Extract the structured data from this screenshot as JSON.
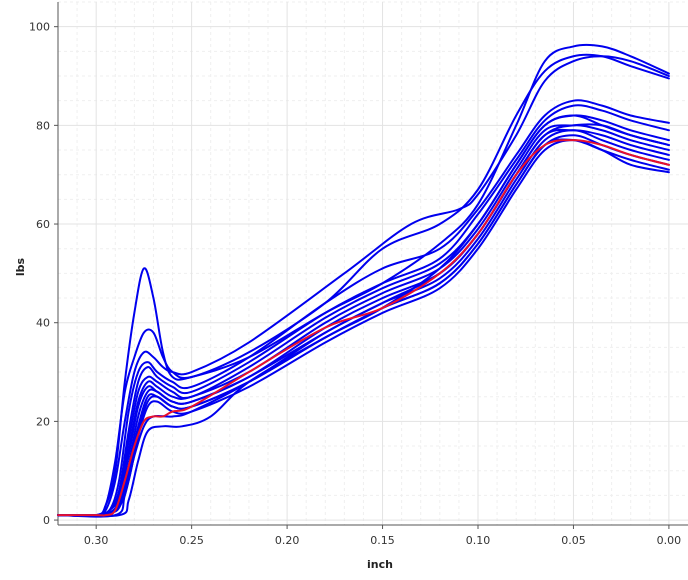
{
  "colors": {
    "series_blue": "#0000ee",
    "series_red": "#e8102c",
    "grid_major": "#e3e3e3",
    "grid_minor": "#efefef",
    "axis": "#555555"
  },
  "chart_data": {
    "type": "line",
    "title": "",
    "xlabel": "inch",
    "ylabel": "lbs",
    "xlim": [
      0.32,
      -0.01
    ],
    "x_reversed": true,
    "ylim": [
      -1,
      105
    ],
    "grid": true,
    "x_ticks": [
      0.3,
      0.25,
      0.2,
      0.15,
      0.1,
      0.05,
      0.0
    ],
    "x_tick_labels": [
      "0.30",
      "0.25",
      "0.20",
      "0.15",
      "0.10",
      "0.05",
      "0.00"
    ],
    "y_ticks": [
      0,
      20,
      40,
      60,
      80,
      100
    ],
    "y_tick_labels": [
      "0",
      "20",
      "40",
      "60",
      "80",
      "100"
    ],
    "series": [
      {
        "color": "blue",
        "x": [
          0.32,
          0.3,
          0.295,
          0.29,
          0.285,
          0.28,
          0.275,
          0.27,
          0.265,
          0.26,
          0.25,
          0.22,
          0.18,
          0.15,
          0.12,
          0.1,
          0.08,
          0.065,
          0.05,
          0.035,
          0.02,
          0.0
        ],
        "y": [
          1,
          1,
          3,
          10,
          28,
          42,
          51,
          45,
          34,
          29,
          29,
          33,
          42,
          48,
          56,
          64,
          80,
          93,
          96,
          96,
          94,
          90.5
        ]
      },
      {
        "color": "blue",
        "x": [
          0.32,
          0.3,
          0.295,
          0.29,
          0.285,
          0.28,
          0.275,
          0.27,
          0.265,
          0.26,
          0.25,
          0.22,
          0.18,
          0.15,
          0.12,
          0.1,
          0.08,
          0.065,
          0.05,
          0.035,
          0.02,
          0.0
        ],
        "y": [
          1,
          1,
          3,
          12,
          26,
          33,
          38,
          38,
          33,
          30,
          29,
          34,
          44,
          55,
          60,
          67,
          82,
          91,
          94,
          94,
          92,
          89.5
        ]
      },
      {
        "color": "blue",
        "x": [
          0.32,
          0.3,
          0.295,
          0.29,
          0.285,
          0.28,
          0.275,
          0.27,
          0.265,
          0.26,
          0.25,
          0.22,
          0.17,
          0.135,
          0.11,
          0.1,
          0.08,
          0.065,
          0.05,
          0.035,
          0.02,
          0.0
        ],
        "y": [
          1,
          1,
          2,
          8,
          20,
          30,
          34,
          33,
          31,
          30,
          30,
          36,
          50,
          60,
          63,
          66,
          78,
          89,
          93,
          94,
          93,
          90
        ]
      },
      {
        "color": "blue",
        "x": [
          0.32,
          0.3,
          0.293,
          0.288,
          0.283,
          0.278,
          0.273,
          0.268,
          0.26,
          0.25,
          0.22,
          0.18,
          0.15,
          0.12,
          0.1,
          0.08,
          0.065,
          0.05,
          0.035,
          0.02,
          0.0
        ],
        "y": [
          1,
          1,
          2,
          8,
          22,
          30,
          32,
          30,
          28,
          27,
          33,
          44,
          51,
          55,
          63,
          74,
          82,
          85,
          84,
          82,
          80.5
        ]
      },
      {
        "color": "blue",
        "x": [
          0.32,
          0.3,
          0.293,
          0.288,
          0.283,
          0.278,
          0.273,
          0.268,
          0.26,
          0.25,
          0.22,
          0.18,
          0.15,
          0.12,
          0.1,
          0.08,
          0.065,
          0.05,
          0.035,
          0.02,
          0.0
        ],
        "y": [
          1,
          1,
          2,
          6,
          18,
          28,
          31,
          29,
          27,
          26,
          32,
          42,
          48,
          53,
          62,
          73,
          81,
          84,
          83,
          81,
          79
        ]
      },
      {
        "color": "blue",
        "x": [
          0.32,
          0.3,
          0.293,
          0.288,
          0.283,
          0.278,
          0.273,
          0.268,
          0.26,
          0.25,
          0.22,
          0.18,
          0.15,
          0.12,
          0.1,
          0.08,
          0.065,
          0.05,
          0.035,
          0.02,
          0.0
        ],
        "y": [
          1,
          1,
          2,
          5,
          16,
          26,
          29,
          28,
          26,
          25,
          31,
          41,
          47,
          52,
          60,
          72,
          80,
          82,
          81,
          79,
          77
        ]
      },
      {
        "color": "blue",
        "x": [
          0.32,
          0.3,
          0.293,
          0.288,
          0.283,
          0.278,
          0.273,
          0.268,
          0.26,
          0.25,
          0.22,
          0.18,
          0.15,
          0.12,
          0.1,
          0.08,
          0.065,
          0.05,
          0.035,
          0.02,
          0.0
        ],
        "y": [
          1,
          1,
          1.5,
          4,
          14,
          24,
          28,
          27,
          25,
          25,
          30,
          40,
          46,
          51,
          59,
          71,
          79,
          80,
          80,
          78,
          76
        ]
      },
      {
        "color": "blue",
        "x": [
          0.32,
          0.3,
          0.293,
          0.288,
          0.283,
          0.278,
          0.273,
          0.268,
          0.26,
          0.25,
          0.22,
          0.18,
          0.15,
          0.12,
          0.1,
          0.08,
          0.065,
          0.05,
          0.035,
          0.02,
          0.0
        ],
        "y": [
          1,
          1,
          1.5,
          4,
          13,
          23,
          27,
          26,
          24,
          24,
          29,
          39,
          45,
          50,
          58,
          70,
          78,
          79,
          78,
          76,
          74
        ]
      },
      {
        "color": "blue",
        "x": [
          0.32,
          0.3,
          0.293,
          0.288,
          0.283,
          0.278,
          0.273,
          0.268,
          0.26,
          0.25,
          0.22,
          0.18,
          0.15,
          0.12,
          0.1,
          0.08,
          0.065,
          0.05,
          0.035,
          0.02,
          0.0
        ],
        "y": [
          1,
          1,
          1.5,
          3,
          11,
          21,
          26,
          26,
          24,
          24,
          29,
          38,
          44,
          49,
          57,
          69,
          77,
          79,
          77,
          75,
          73
        ]
      },
      {
        "color": "blue",
        "x": [
          0.32,
          0.3,
          0.293,
          0.288,
          0.283,
          0.278,
          0.273,
          0.268,
          0.26,
          0.25,
          0.22,
          0.18,
          0.15,
          0.12,
          0.1,
          0.08,
          0.065,
          0.05,
          0.035,
          0.02,
          0.0
        ],
        "y": [
          1,
          1,
          1.5,
          3,
          10,
          19,
          25,
          25,
          23,
          23,
          28,
          37,
          43,
          48,
          56,
          68,
          76,
          78,
          76,
          74,
          72
        ]
      },
      {
        "color": "blue",
        "x": [
          0.32,
          0.3,
          0.293,
          0.288,
          0.283,
          0.278,
          0.273,
          0.268,
          0.26,
          0.25,
          0.22,
          0.18,
          0.15,
          0.12,
          0.1,
          0.08,
          0.065,
          0.05,
          0.035,
          0.02,
          0.0
        ],
        "y": [
          1,
          1,
          1.5,
          3,
          9,
          18,
          24,
          25,
          23,
          23,
          28,
          37,
          43,
          48,
          56,
          68,
          76,
          77,
          75,
          73,
          71
        ]
      },
      {
        "color": "blue",
        "x": [
          0.32,
          0.3,
          0.293,
          0.288,
          0.283,
          0.278,
          0.273,
          0.268,
          0.26,
          0.25,
          0.22,
          0.18,
          0.15,
          0.12,
          0.1,
          0.08,
          0.065,
          0.05,
          0.035,
          0.02,
          0.0
        ],
        "y": [
          1,
          1,
          1.5,
          2.5,
          8,
          17,
          23,
          24,
          22,
          22,
          27,
          36,
          42,
          47,
          55,
          67,
          75,
          77,
          75,
          72,
          70.5
        ]
      },
      {
        "color": "blue",
        "x": [
          0.32,
          0.29,
          0.285,
          0.28,
          0.275,
          0.27,
          0.26,
          0.25,
          0.22,
          0.18,
          0.15,
          0.12,
          0.1,
          0.08,
          0.065,
          0.05,
          0.035,
          0.02,
          0.0
        ],
        "y": [
          1,
          1,
          5,
          13,
          19,
          21,
          21,
          22,
          28,
          38,
          44,
          50,
          58,
          70,
          78,
          80,
          79,
          77,
          75
        ]
      },
      {
        "color": "blue",
        "x": [
          0.32,
          0.288,
          0.283,
          0.278,
          0.273,
          0.265,
          0.255,
          0.24,
          0.22,
          0.18,
          0.15,
          0.12,
          0.1,
          0.08,
          0.065,
          0.05,
          0.035,
          0.02,
          0.0
        ],
        "y": [
          1,
          1,
          4,
          12,
          18,
          19,
          19,
          21,
          28,
          37,
          43,
          51,
          60,
          72,
          80,
          82,
          80,
          78,
          76
        ]
      },
      {
        "color": "red",
        "x": [
          0.32,
          0.3,
          0.295,
          0.29,
          0.285,
          0.28,
          0.275,
          0.27,
          0.265,
          0.26,
          0.25,
          0.22,
          0.18,
          0.15,
          0.12,
          0.1,
          0.08,
          0.065,
          0.05,
          0.035,
          0.02,
          0.0
        ],
        "y": [
          1,
          1,
          1,
          2,
          8,
          15,
          20,
          21,
          21,
          22,
          23,
          30,
          39,
          43,
          50,
          58,
          70,
          76,
          77,
          76,
          74,
          72
        ]
      }
    ]
  }
}
